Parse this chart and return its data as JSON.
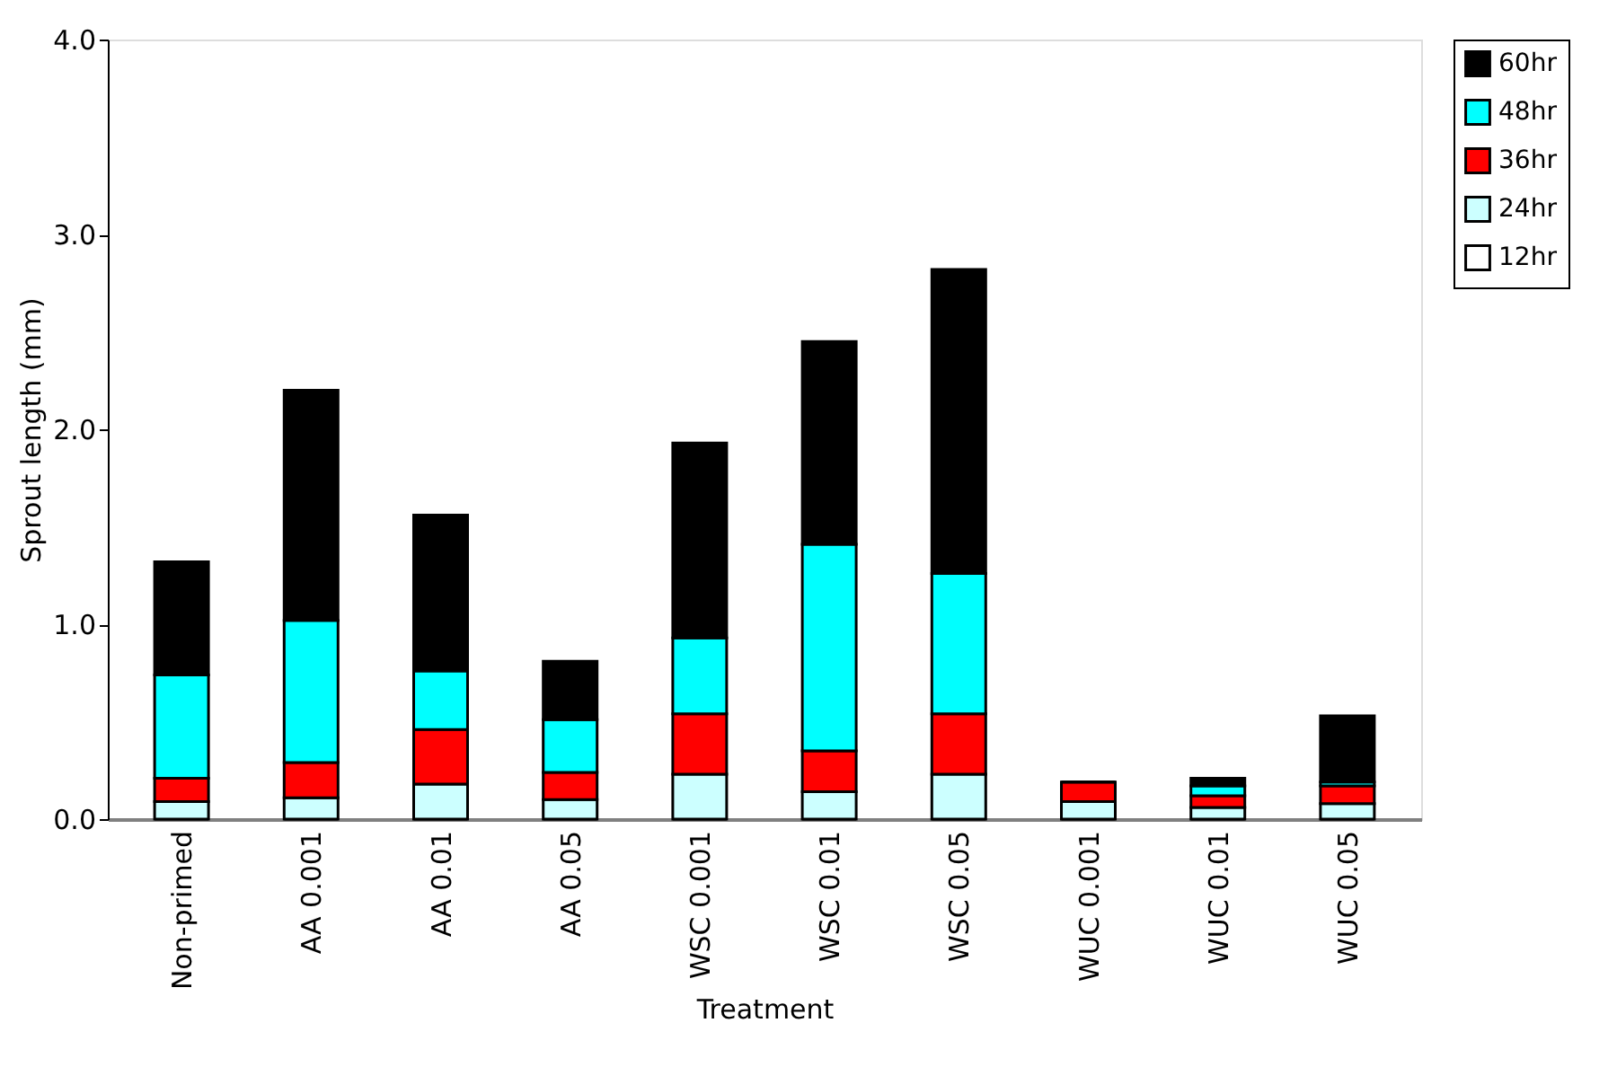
{
  "chart_data": {
    "type": "bar",
    "stacked": true,
    "xlabel": "Treatment",
    "ylabel": "Sprout  length (mm)",
    "categories": [
      "Non-primed",
      "AA 0.001",
      "AA 0.01",
      "AA 0.05",
      "WSC 0.001",
      "WSC 0.01",
      "WSC 0.05",
      "WUC 0.001",
      "WUC 0.01",
      "WUC 0.05"
    ],
    "series": [
      {
        "name": "12hr",
        "color": "#ffffff",
        "values": [
          0,
          0,
          0,
          0,
          0,
          0,
          0,
          0,
          0,
          0
        ]
      },
      {
        "name": "24hr",
        "color": "#ccffff",
        "values": [
          0.09,
          0.11,
          0.18,
          0.1,
          0.23,
          0.14,
          0.23,
          0.09,
          0.06,
          0.08
        ]
      },
      {
        "name": "36hr",
        "color": "#ff0000",
        "values": [
          0.12,
          0.18,
          0.28,
          0.14,
          0.31,
          0.21,
          0.31,
          0.1,
          0.06,
          0.09
        ]
      },
      {
        "name": "48hr",
        "color": "#00ffff",
        "values": [
          0.53,
          0.73,
          0.3,
          0.27,
          0.39,
          1.06,
          0.72,
          0,
          0.05,
          0.02
        ]
      },
      {
        "name": "60hr",
        "color": "#000000",
        "values": [
          0.58,
          1.18,
          0.8,
          0.3,
          1.0,
          1.04,
          1.56,
          0,
          0.04,
          0.34
        ]
      }
    ],
    "ylim": [
      0,
      4
    ],
    "yticks": [
      {
        "value": 0,
        "label": "0.0"
      },
      {
        "value": 1,
        "label": "1.0"
      },
      {
        "value": 2,
        "label": "2.0"
      },
      {
        "value": 3,
        "label": "3.0"
      },
      {
        "value": 4,
        "label": "4.0"
      }
    ],
    "grid": false,
    "legend": "right"
  }
}
